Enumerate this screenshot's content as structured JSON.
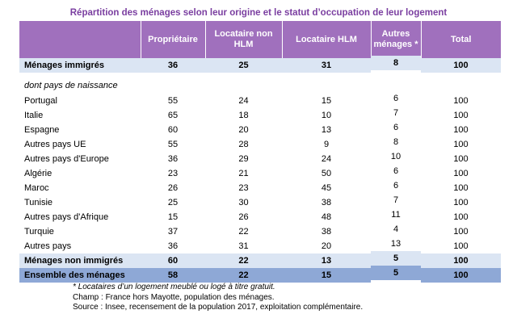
{
  "title": "Répartition des ménages selon leur origine et le statut d’occupation de leur logement",
  "columns": [
    "",
    "Propriétaire",
    "Locataire non HLM",
    "Locataire HLM",
    "Autres ménages *",
    "Total"
  ],
  "row_immigres": {
    "label": "Ménages immigrés",
    "values": [
      "36",
      "25",
      "31",
      "8",
      "100"
    ]
  },
  "sub_label": "dont pays de naissance",
  "countries": [
    {
      "label": "Portugal",
      "values": [
        "55",
        "24",
        "15",
        "6",
        "100"
      ]
    },
    {
      "label": "Italie",
      "values": [
        "65",
        "18",
        "10",
        "7",
        "100"
      ]
    },
    {
      "label": "Espagne",
      "values": [
        "60",
        "20",
        "13",
        "6",
        "100"
      ]
    },
    {
      "label": "Autres pays UE",
      "values": [
        "55",
        "28",
        "9",
        "8",
        "100"
      ]
    },
    {
      "label": "Autres pays d'Europe",
      "values": [
        "36",
        "29",
        "24",
        "10",
        "100"
      ]
    },
    {
      "label": "Algérie",
      "values": [
        "23",
        "21",
        "50",
        "6",
        "100"
      ]
    },
    {
      "label": "Maroc",
      "values": [
        "26",
        "23",
        "45",
        "6",
        "100"
      ]
    },
    {
      "label": "Tunisie",
      "values": [
        "25",
        "30",
        "38",
        "7",
        "100"
      ]
    },
    {
      "label": "Autres pays d'Afrique",
      "values": [
        "15",
        "26",
        "48",
        "11",
        "100"
      ]
    },
    {
      "label": "Turquie",
      "values": [
        "37",
        "22",
        "38",
        "4",
        "100"
      ]
    },
    {
      "label": "Autres pays",
      "values": [
        "36",
        "31",
        "20",
        "13",
        "100"
      ]
    }
  ],
  "row_non_immigres": {
    "label": "Ménages non immigrés",
    "values": [
      "60",
      "22",
      "13",
      "5",
      "100"
    ]
  },
  "row_ensemble": {
    "label": "Ensemble des ménages",
    "values": [
      "58",
      "22",
      "15",
      "5",
      "100"
    ]
  },
  "notes": {
    "asterisk": "* Locataires d’un logement meublé ou logé à titre gratuit.",
    "champ": "Champ : France hors Mayotte, population des ménages.",
    "source": "Source : Insee, recensement de la population 2017, exploitation complémentaire."
  }
}
